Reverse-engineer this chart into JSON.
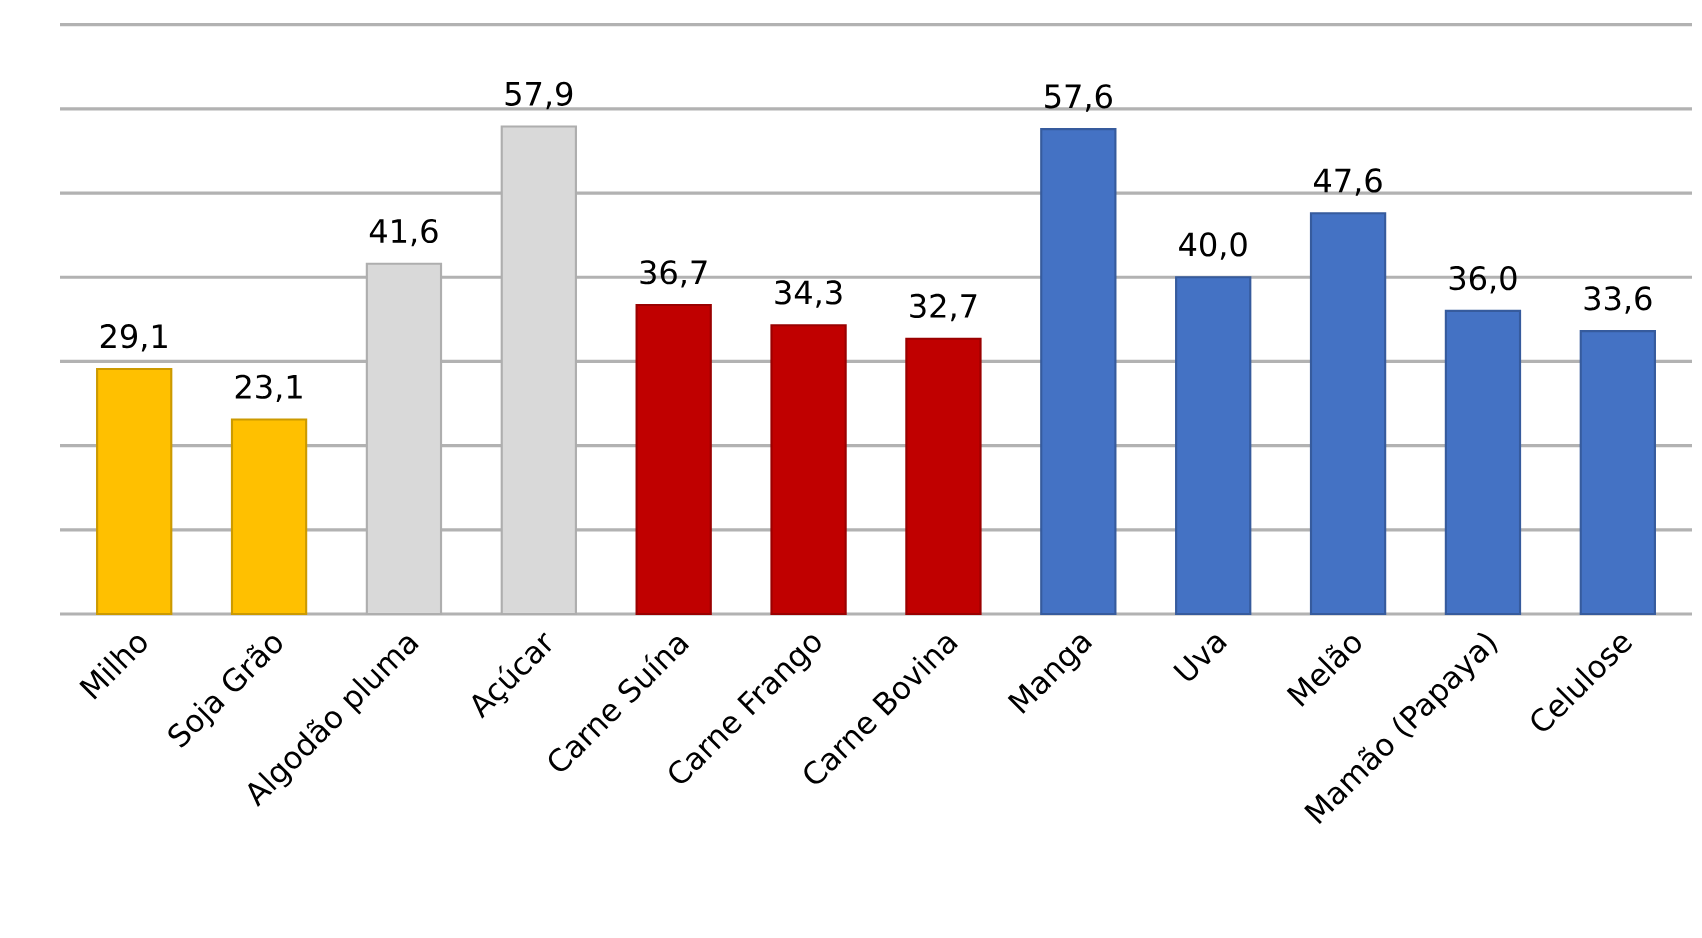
{
  "chart_data": {
    "type": "bar",
    "categories": [
      "Milho",
      "Soja Grão",
      "Algodão pluma",
      "Açúcar",
      "Carne Suína",
      "Carne Frango",
      "Carne Bovina",
      "Manga",
      "Uva",
      "Melão",
      "Mamão (Papaya)",
      "Celulose"
    ],
    "values": [
      29.1,
      23.1,
      41.6,
      57.9,
      36.7,
      34.3,
      32.7,
      57.6,
      40.0,
      47.6,
      36.0,
      33.6
    ],
    "value_labels": [
      "29,1",
      "23,1",
      "41,6",
      "57,9",
      "36,7",
      "34,3",
      "32,7",
      "57,6",
      "40,0",
      "47,6",
      "36,0",
      "33,6"
    ],
    "colors": [
      "#ffc000",
      "#ffc000",
      "#d9d9d9",
      "#d9d9d9",
      "#c00000",
      "#c00000",
      "#c00000",
      "#4472c4",
      "#4472c4",
      "#4472c4",
      "#4472c4",
      "#4472c4"
    ],
    "ylim": [
      0,
      70
    ],
    "yticks": [
      {
        "value": 0,
        "label": null
      },
      {
        "value": 10,
        "label": null
      },
      {
        "value": 20,
        "label": null
      },
      {
        "value": 30,
        "label": null
      },
      {
        "value": 40,
        "label": null
      },
      {
        "value": 50,
        "label": null
      },
      {
        "value": 60,
        "label": null
      },
      {
        "value": 70,
        "label": null
      }
    ],
    "grid": "y",
    "tick_labels": "x"
  }
}
